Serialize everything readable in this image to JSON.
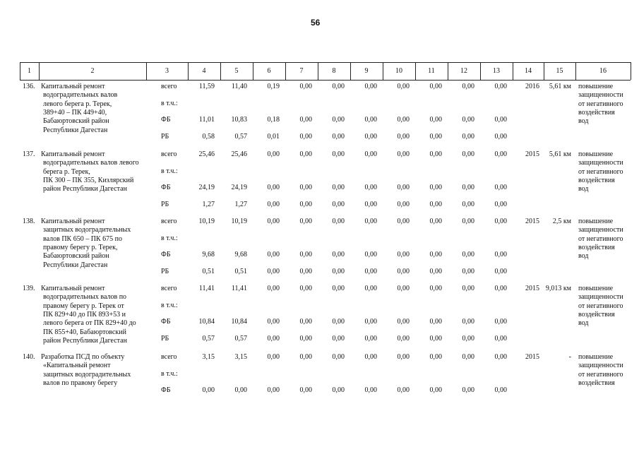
{
  "page_number": "56",
  "table": {
    "header": [
      "1",
      "2",
      "3",
      "4",
      "5",
      "6",
      "7",
      "8",
      "9",
      "10",
      "11",
      "12",
      "13",
      "14",
      "15",
      "16"
    ],
    "rows": [
      {
        "number": "136.",
        "name": [
          "Капитальный ремонт",
          "водоградительных валов",
          "левого берега р. Терек,",
          "389+40 – ПК 449+40,",
          "Бабаюртовский район",
          "Республики Дагестан"
        ],
        "sources": [
          {
            "label": "всего",
            "values": [
              "11,59",
              "11,40",
              "0,19",
              "0,00",
              "0,00",
              "0,00",
              "0,00",
              "0,00",
              "0,00",
              "0,00"
            ]
          },
          {
            "label": "в т.ч.:"
          },
          {
            "label": "ФБ",
            "values": [
              "11,01",
              "10,83",
              "0,18",
              "0,00",
              "0,00",
              "0,00",
              "0,00",
              "0,00",
              "0,00",
              "0,00"
            ]
          },
          {
            "label": "РБ",
            "values": [
              "0,58",
              "0,57",
              "0,01",
              "0,00",
              "0,00",
              "0,00",
              "0,00",
              "0,00",
              "0,00",
              "0,00"
            ]
          }
        ],
        "year": "2016",
        "length": "5,61 км",
        "effect": [
          "повышение",
          "защищенности",
          "от негативного",
          "воздействия",
          "вод"
        ]
      },
      {
        "number": "137.",
        "name": [
          "Капитальный ремонт",
          "водоградительных валов левого",
          "берега р. Терек,",
          "ПК 300 – ПК 355, Кизлярский",
          "район Республики Дагестан"
        ],
        "sources": [
          {
            "label": "всего",
            "values": [
              "25,46",
              "25,46",
              "0,00",
              "0,00",
              "0,00",
              "0,00",
              "0,00",
              "0,00",
              "0,00",
              "0,00"
            ]
          },
          {
            "label": "в т.ч.:"
          },
          {
            "label": "ФБ",
            "values": [
              "24,19",
              "24,19",
              "0,00",
              "0,00",
              "0,00",
              "0,00",
              "0,00",
              "0,00",
              "0,00",
              "0,00"
            ]
          },
          {
            "label": "РБ",
            "values": [
              "1,27",
              "1,27",
              "0,00",
              "0,00",
              "0,00",
              "0,00",
              "0,00",
              "0,00",
              "0,00",
              "0,00"
            ]
          }
        ],
        "year": "2015",
        "length": "5,61 км",
        "effect": [
          "повышение",
          "защищенности",
          "от негативного",
          "воздействия",
          "вод"
        ]
      },
      {
        "number": "138.",
        "name": [
          "Капитальный ремонт",
          "защитных водоградительных",
          "валов ПК 650 – ПК 675 по",
          "правому берегу р. Терек,",
          "Бабаюртовский район",
          "Республики Дагестан"
        ],
        "sources": [
          {
            "label": "всего",
            "values": [
              "10,19",
              "10,19",
              "0,00",
              "0,00",
              "0,00",
              "0,00",
              "0,00",
              "0,00",
              "0,00",
              "0,00"
            ]
          },
          {
            "label": "в т.ч.:"
          },
          {
            "label": "ФБ",
            "values": [
              "9,68",
              "9,68",
              "0,00",
              "0,00",
              "0,00",
              "0,00",
              "0,00",
              "0,00",
              "0,00",
              "0,00"
            ]
          },
          {
            "label": "РБ",
            "values": [
              "0,51",
              "0,51",
              "0,00",
              "0,00",
              "0,00",
              "0,00",
              "0,00",
              "0,00",
              "0,00",
              "0,00"
            ]
          }
        ],
        "year": "2015",
        "length": "2,5 км",
        "effect": [
          "повышение",
          "защищенности",
          "от негативного",
          "воздействия",
          "вод"
        ]
      },
      {
        "number": "139.",
        "name": [
          "Капитальный ремонт",
          "водоградительных валов по",
          "правому берегу р. Терек от",
          "ПК 829+40 до ПК 893+53 и",
          "левого берега от ПК 829+40 до",
          "ПК 855+40, Бабаюртовский",
          "район Республики Дагестан"
        ],
        "sources": [
          {
            "label": "всего",
            "values": [
              "11,41",
              "11,41",
              "0,00",
              "0,00",
              "0,00",
              "0,00",
              "0,00",
              "0,00",
              "0,00",
              "0,00"
            ]
          },
          {
            "label": "в т.ч.:"
          },
          {
            "label": "ФБ",
            "values": [
              "10,84",
              "10,84",
              "0,00",
              "0,00",
              "0,00",
              "0,00",
              "0,00",
              "0,00",
              "0,00",
              "0,00"
            ]
          },
          {
            "label": "РБ",
            "values": [
              "0,57",
              "0,57",
              "0,00",
              "0,00",
              "0,00",
              "0,00",
              "0,00",
              "0,00",
              "0,00",
              "0,00"
            ]
          }
        ],
        "year": "2015",
        "length": "9,013 км",
        "effect": [
          "повышение",
          "защищенности",
          "от негативного",
          "воздействия",
          "вод"
        ]
      },
      {
        "number": "140.",
        "name": [
          "Разработка ПСД по объекту",
          "«Капитальный ремонт",
          "защитных водоградительных",
          "валов по правому берегу"
        ],
        "sources": [
          {
            "label": "всего",
            "values": [
              "3,15",
              "3,15",
              "0,00",
              "0,00",
              "0,00",
              "0,00",
              "0,00",
              "0,00",
              "0,00",
              "0,00"
            ]
          },
          {
            "label": "в т.ч.:"
          },
          {
            "label": "ФБ",
            "values": [
              "0,00",
              "0,00",
              "0,00",
              "0,00",
              "0,00",
              "0,00",
              "0,00",
              "0,00",
              "0,00",
              "0,00"
            ]
          }
        ],
        "year": "2015",
        "length": "-",
        "effect": [
          "повышение",
          "защищенности",
          "от негативного",
          "воздействия"
        ]
      }
    ]
  }
}
